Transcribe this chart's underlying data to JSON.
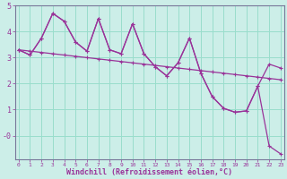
{
  "xlabel": "Windchill (Refroidissement éolien,°C)",
  "x_hours": [
    0,
    1,
    2,
    3,
    4,
    5,
    6,
    7,
    8,
    9,
    10,
    11,
    12,
    13,
    14,
    15,
    16,
    17,
    18,
    19,
    20,
    21,
    22,
    23
  ],
  "line1": [
    3.3,
    3.1,
    3.75,
    4.7,
    4.4,
    3.6,
    3.25,
    4.5,
    3.3,
    3.15,
    4.3,
    3.15,
    2.65,
    2.3,
    2.8,
    3.75,
    2.4,
    1.5,
    1.05,
    0.9,
    0.95,
    1.9,
    2.75,
    2.6
  ],
  "line2": [
    3.3,
    3.1,
    3.75,
    4.7,
    4.4,
    3.6,
    3.25,
    4.5,
    3.3,
    3.15,
    4.3,
    3.15,
    2.65,
    2.3,
    2.8,
    3.75,
    2.4,
    1.5,
    1.05,
    0.9,
    0.95,
    1.9,
    -0.4,
    -0.7
  ],
  "trend": [
    3.3,
    3.25,
    3.2,
    3.15,
    3.1,
    3.05,
    3.0,
    2.95,
    2.9,
    2.85,
    2.8,
    2.75,
    2.7,
    2.65,
    2.6,
    2.55,
    2.5,
    2.45,
    2.4,
    2.35,
    2.3,
    2.25,
    2.2,
    2.15
  ],
  "line_color": "#993399",
  "bg_color": "#cceee8",
  "grid_color": "#99ddcc",
  "ylim": [
    -0.9,
    5.0
  ],
  "xlim": [
    0,
    23
  ],
  "yticks": [
    0,
    1,
    2,
    3,
    4
  ],
  "ytick_labels": [
    "-0",
    "1",
    "2",
    "3",
    "4"
  ]
}
